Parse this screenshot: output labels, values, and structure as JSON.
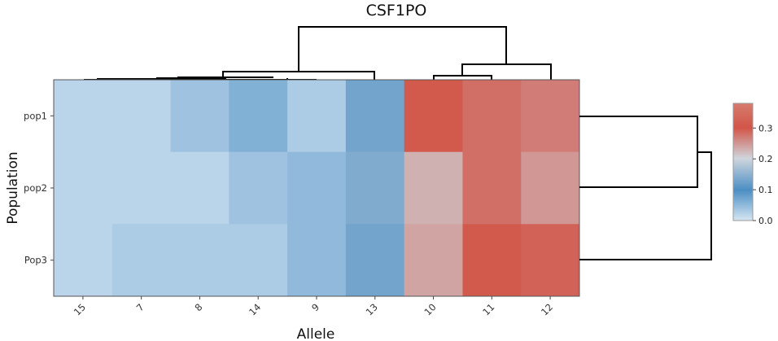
{
  "chart_data": {
    "type": "heatmap",
    "title": "CSF1PO",
    "xlabel": "Allele",
    "ylabel": "Population",
    "x_categories": [
      "15",
      "7",
      "8",
      "14",
      "9",
      "13",
      "10",
      "11",
      "12"
    ],
    "y_categories": [
      "pop1",
      "pop2",
      "Pop3"
    ],
    "values": [
      [
        0.02,
        0.02,
        0.04,
        0.06,
        0.03,
        0.13,
        0.31,
        0.28,
        0.27
      ],
      [
        0.02,
        0.02,
        0.02,
        0.04,
        0.05,
        0.14,
        0.23,
        0.28,
        0.25
      ],
      [
        0.02,
        0.03,
        0.03,
        0.03,
        0.05,
        0.13,
        0.24,
        0.31,
        0.29
      ]
    ],
    "colorbar": {
      "range": [
        0,
        0.38
      ],
      "ticks": [
        "0.0",
        "0.1",
        "0.2",
        "0.3"
      ],
      "tick_values": [
        0,
        0.1,
        0.2,
        0.3
      ],
      "colors": {
        "low": "#d4e4f1",
        "mid_blue": "#4b8ec4",
        "mid": "#cfd6dd",
        "high": "#d25548"
      }
    },
    "dendrogram_columns": true,
    "dendrogram_rows": true,
    "grid": false
  }
}
